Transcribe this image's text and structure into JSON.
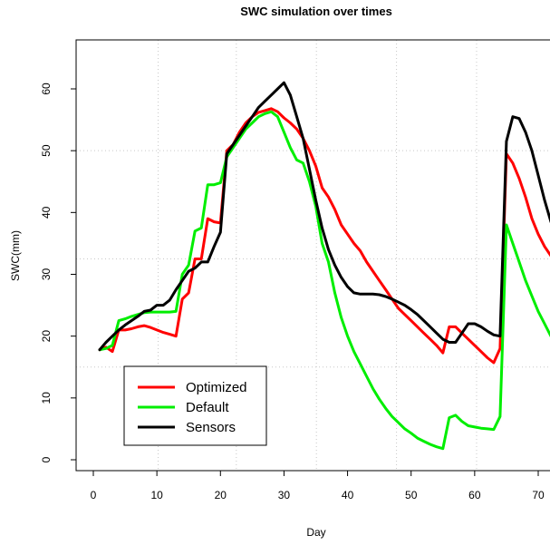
{
  "chart_data": {
    "type": "line",
    "title": "SWC simulation over times",
    "xlabel": "Day",
    "ylabel": "SWC(mm)",
    "xlim": [
      -1,
      73
    ],
    "ylim": [
      -2,
      68
    ],
    "xticks": [
      0,
      10,
      20,
      30,
      40,
      50,
      60,
      70
    ],
    "yticks": [
      0,
      10,
      20,
      30,
      40,
      50,
      60
    ],
    "grid_x": [
      10.2,
      22.5,
      35.1,
      47.7,
      60.3
    ],
    "grid_y": [
      15,
      32.5,
      50
    ],
    "legend_position": "bottom-left",
    "series": [
      {
        "name": "Optimized",
        "color": "#ff0000",
        "points": [
          [
            1,
            17.8
          ],
          [
            2,
            18.2
          ],
          [
            3,
            17.5
          ],
          [
            4,
            21
          ],
          [
            5,
            21
          ],
          [
            6,
            21.2
          ],
          [
            7,
            21.5
          ],
          [
            8,
            21.7
          ],
          [
            9,
            21.4
          ],
          [
            10,
            21
          ],
          [
            11,
            20.6
          ],
          [
            12,
            20.3
          ],
          [
            13,
            20
          ],
          [
            14,
            26
          ],
          [
            15,
            27
          ],
          [
            16,
            32.5
          ],
          [
            17,
            32.5
          ],
          [
            18,
            39
          ],
          [
            19,
            38.5
          ],
          [
            20,
            38.3
          ],
          [
            21,
            50
          ],
          [
            22,
            51
          ],
          [
            23,
            53
          ],
          [
            24,
            54.5
          ],
          [
            25,
            55.5
          ],
          [
            26,
            56.2
          ],
          [
            27,
            56.5
          ],
          [
            28,
            56.8
          ],
          [
            29,
            56.3
          ],
          [
            30,
            55.3
          ],
          [
            31,
            54.5
          ],
          [
            32,
            53.5
          ],
          [
            33,
            52
          ],
          [
            34,
            50
          ],
          [
            35,
            47.5
          ],
          [
            36,
            44
          ],
          [
            37,
            42.5
          ],
          [
            38,
            40.5
          ],
          [
            39,
            38
          ],
          [
            40,
            36.5
          ],
          [
            41,
            35
          ],
          [
            42,
            33.8
          ],
          [
            43,
            32
          ],
          [
            44,
            30.5
          ],
          [
            45,
            29
          ],
          [
            46,
            27.5
          ],
          [
            47,
            26
          ],
          [
            48,
            24.5
          ],
          [
            49,
            23.5
          ],
          [
            50,
            22.5
          ],
          [
            51,
            21.5
          ],
          [
            52,
            20.5
          ],
          [
            53,
            19.5
          ],
          [
            54,
            18.5
          ],
          [
            55,
            17.3
          ],
          [
            56,
            21.5
          ],
          [
            57,
            21.5
          ],
          [
            58,
            20.5
          ],
          [
            59,
            19.5
          ],
          [
            60,
            18.5
          ],
          [
            61,
            17.5
          ],
          [
            62,
            16.5
          ],
          [
            63,
            15.7
          ],
          [
            64,
            18
          ],
          [
            65,
            49.5
          ],
          [
            66,
            48
          ],
          [
            67,
            45.5
          ],
          [
            68,
            42.5
          ],
          [
            69,
            39
          ],
          [
            70,
            36.5
          ],
          [
            71,
            34.5
          ],
          [
            72,
            33
          ]
        ]
      },
      {
        "name": "Default",
        "color": "#00ee00",
        "points": [
          [
            1,
            17.8
          ],
          [
            2,
            18
          ],
          [
            3,
            18.5
          ],
          [
            4,
            22.5
          ],
          [
            5,
            22.8
          ],
          [
            6,
            23.2
          ],
          [
            7,
            23.5
          ],
          [
            8,
            23.8
          ],
          [
            9,
            23.9
          ],
          [
            10,
            23.9
          ],
          [
            11,
            23.9
          ],
          [
            12,
            23.9
          ],
          [
            13,
            24
          ],
          [
            14,
            30
          ],
          [
            15,
            31.5
          ],
          [
            16,
            37
          ],
          [
            17,
            37.5
          ],
          [
            18,
            44.5
          ],
          [
            19,
            44.5
          ],
          [
            20,
            44.8
          ],
          [
            21,
            49
          ],
          [
            22,
            50.5
          ],
          [
            23,
            52
          ],
          [
            24,
            53.5
          ],
          [
            25,
            54.5
          ],
          [
            26,
            55.5
          ],
          [
            27,
            56
          ],
          [
            28,
            56.3
          ],
          [
            29,
            55.5
          ],
          [
            30,
            53
          ],
          [
            31,
            50.5
          ],
          [
            32,
            48.5
          ],
          [
            33,
            48
          ],
          [
            34,
            45
          ],
          [
            35,
            41
          ],
          [
            36,
            35
          ],
          [
            37,
            32
          ],
          [
            38,
            27
          ],
          [
            39,
            23
          ],
          [
            40,
            20
          ],
          [
            41,
            17.5
          ],
          [
            42,
            15.5
          ],
          [
            43,
            13.5
          ],
          [
            44,
            11.5
          ],
          [
            45,
            9.8
          ],
          [
            46,
            8.3
          ],
          [
            47,
            7
          ],
          [
            48,
            6
          ],
          [
            49,
            5
          ],
          [
            50,
            4.3
          ],
          [
            51,
            3.5
          ],
          [
            52,
            3
          ],
          [
            53,
            2.5
          ],
          [
            54,
            2.1
          ],
          [
            55,
            1.8
          ],
          [
            56,
            6.8
          ],
          [
            57,
            7.2
          ],
          [
            58,
            6.2
          ],
          [
            59,
            5.5
          ],
          [
            60,
            5.3
          ],
          [
            61,
            5.1
          ],
          [
            62,
            5
          ],
          [
            63,
            4.9
          ],
          [
            64,
            7
          ],
          [
            65,
            38
          ],
          [
            66,
            35
          ],
          [
            67,
            32
          ],
          [
            68,
            29
          ],
          [
            69,
            26.5
          ],
          [
            70,
            24
          ],
          [
            71,
            22
          ],
          [
            72,
            20
          ]
        ]
      },
      {
        "name": "Sensors",
        "color": "#000000",
        "points": [
          [
            1,
            17.8
          ],
          [
            2,
            19
          ],
          [
            3,
            20
          ],
          [
            4,
            21
          ],
          [
            5,
            21.8
          ],
          [
            6,
            22.5
          ],
          [
            7,
            23.2
          ],
          [
            8,
            24
          ],
          [
            9,
            24.2
          ],
          [
            10,
            25
          ],
          [
            11,
            25
          ],
          [
            12,
            25.8
          ],
          [
            13,
            27.5
          ],
          [
            14,
            29
          ],
          [
            15,
            30.5
          ],
          [
            16,
            31
          ],
          [
            17,
            32
          ],
          [
            18,
            32
          ],
          [
            19,
            34.5
          ],
          [
            20,
            36.8
          ],
          [
            21,
            49.5
          ],
          [
            22,
            51
          ],
          [
            23,
            52.5
          ],
          [
            24,
            54
          ],
          [
            25,
            55.5
          ],
          [
            26,
            57
          ],
          [
            27,
            58
          ],
          [
            28,
            59
          ],
          [
            29,
            60
          ],
          [
            30,
            61
          ],
          [
            31,
            59
          ],
          [
            32,
            55.5
          ],
          [
            33,
            52
          ],
          [
            34,
            47
          ],
          [
            35,
            42
          ],
          [
            36,
            37.5
          ],
          [
            37,
            34
          ],
          [
            38,
            31.5
          ],
          [
            39,
            29.5
          ],
          [
            40,
            28
          ],
          [
            41,
            27
          ],
          [
            42,
            26.8
          ],
          [
            43,
            26.8
          ],
          [
            44,
            26.8
          ],
          [
            45,
            26.7
          ],
          [
            46,
            26.4
          ],
          [
            47,
            26
          ],
          [
            48,
            25.5
          ],
          [
            49,
            25
          ],
          [
            50,
            24.3
          ],
          [
            51,
            23.5
          ],
          [
            52,
            22.5
          ],
          [
            53,
            21.5
          ],
          [
            54,
            20.5
          ],
          [
            55,
            19.5
          ],
          [
            56,
            19
          ],
          [
            57,
            19
          ],
          [
            58,
            20.5
          ],
          [
            59,
            22
          ],
          [
            60,
            22
          ],
          [
            61,
            21.5
          ],
          [
            62,
            20.8
          ],
          [
            63,
            20.2
          ],
          [
            64,
            20
          ],
          [
            65,
            51.5
          ],
          [
            66,
            55.5
          ],
          [
            67,
            55.2
          ],
          [
            68,
            53
          ],
          [
            69,
            50
          ],
          [
            70,
            46
          ],
          [
            71,
            42
          ],
          [
            72,
            38.5
          ]
        ]
      }
    ]
  }
}
